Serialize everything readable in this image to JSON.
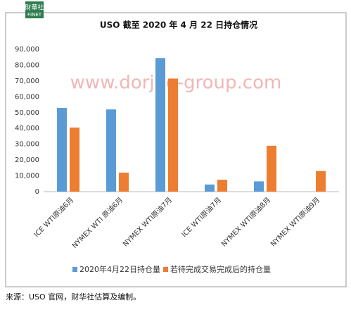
{
  "logo": {
    "name": "財華社",
    "sub": "FINET"
  },
  "watermark": "www.dorjee-group.com",
  "source": "来源：USO 官网，财华社估算及编制。",
  "chart_data": {
    "type": "bar",
    "title": "USO 截至 2020 年 4 月 22 日持仓情况",
    "categories": [
      "ICE WTI原油6月",
      "NYMEX WTI 原油6月",
      "NYMEX WTI原油7月",
      "ICE WTI原油7月",
      "NYMEX WTI原油8月",
      "NYMEX WTI原油9月"
    ],
    "series": [
      {
        "name": "2020年4月22日持仓量",
        "color": "#5b9bd5",
        "values": [
          53000,
          52000,
          84500,
          4500,
          6500,
          null
        ]
      },
      {
        "name": "若待完成交易完成后的持仓量",
        "color": "#ed7d31",
        "values": [
          40500,
          12000,
          71500,
          7500,
          29000,
          13000
        ]
      }
    ],
    "ylim": [
      0,
      90000
    ],
    "yticks": [
      0,
      {
        "value": 10000,
        "label": "10,000"
      },
      {
        "value": 20000,
        "label": "20,000"
      },
      {
        "value": 30000,
        "label": "30,000"
      },
      {
        "value": 40000,
        "label": "40,000"
      },
      {
        "value": 50000,
        "label": "50,000"
      },
      {
        "value": 60000,
        "label": "60,000"
      },
      {
        "value": 70000,
        "label": "70,000"
      },
      {
        "value": 80000,
        "label": "80,000"
      },
      {
        "value": 90000,
        "label": "90,000"
      }
    ],
    "grid": false,
    "legend": "bottom"
  }
}
